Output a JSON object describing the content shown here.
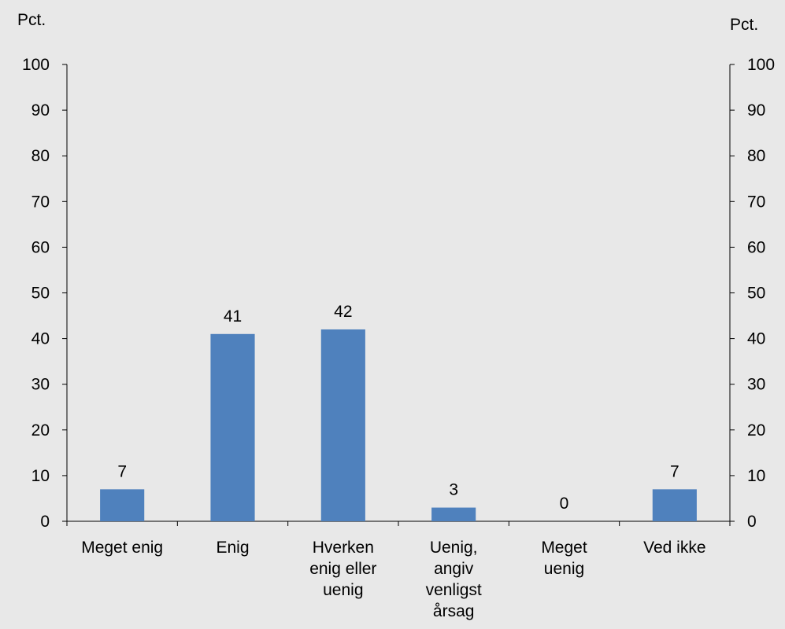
{
  "chart_data": {
    "type": "bar",
    "left_unit": "Pct.",
    "right_unit": "Pct.",
    "categories": [
      [
        "Meget enig"
      ],
      [
        "Enig"
      ],
      [
        "Hverken",
        "enig eller",
        "uenig"
      ],
      [
        "Uenig,",
        "angiv",
        "venligst",
        "årsag"
      ],
      [
        "Meget",
        "uenig"
      ],
      [
        "Ved ikke"
      ]
    ],
    "values": [
      7,
      41,
      42,
      3,
      0,
      7
    ],
    "value_labels": [
      "7",
      "41",
      "42",
      "3",
      "0",
      "7"
    ],
    "ylim": [
      0,
      100
    ],
    "yticks": [
      0,
      10,
      20,
      30,
      40,
      50,
      60,
      70,
      80,
      90,
      100
    ],
    "bar_color": "#4f81bd",
    "background": "#e8e8e8",
    "grid": false,
    "legend": "none"
  }
}
